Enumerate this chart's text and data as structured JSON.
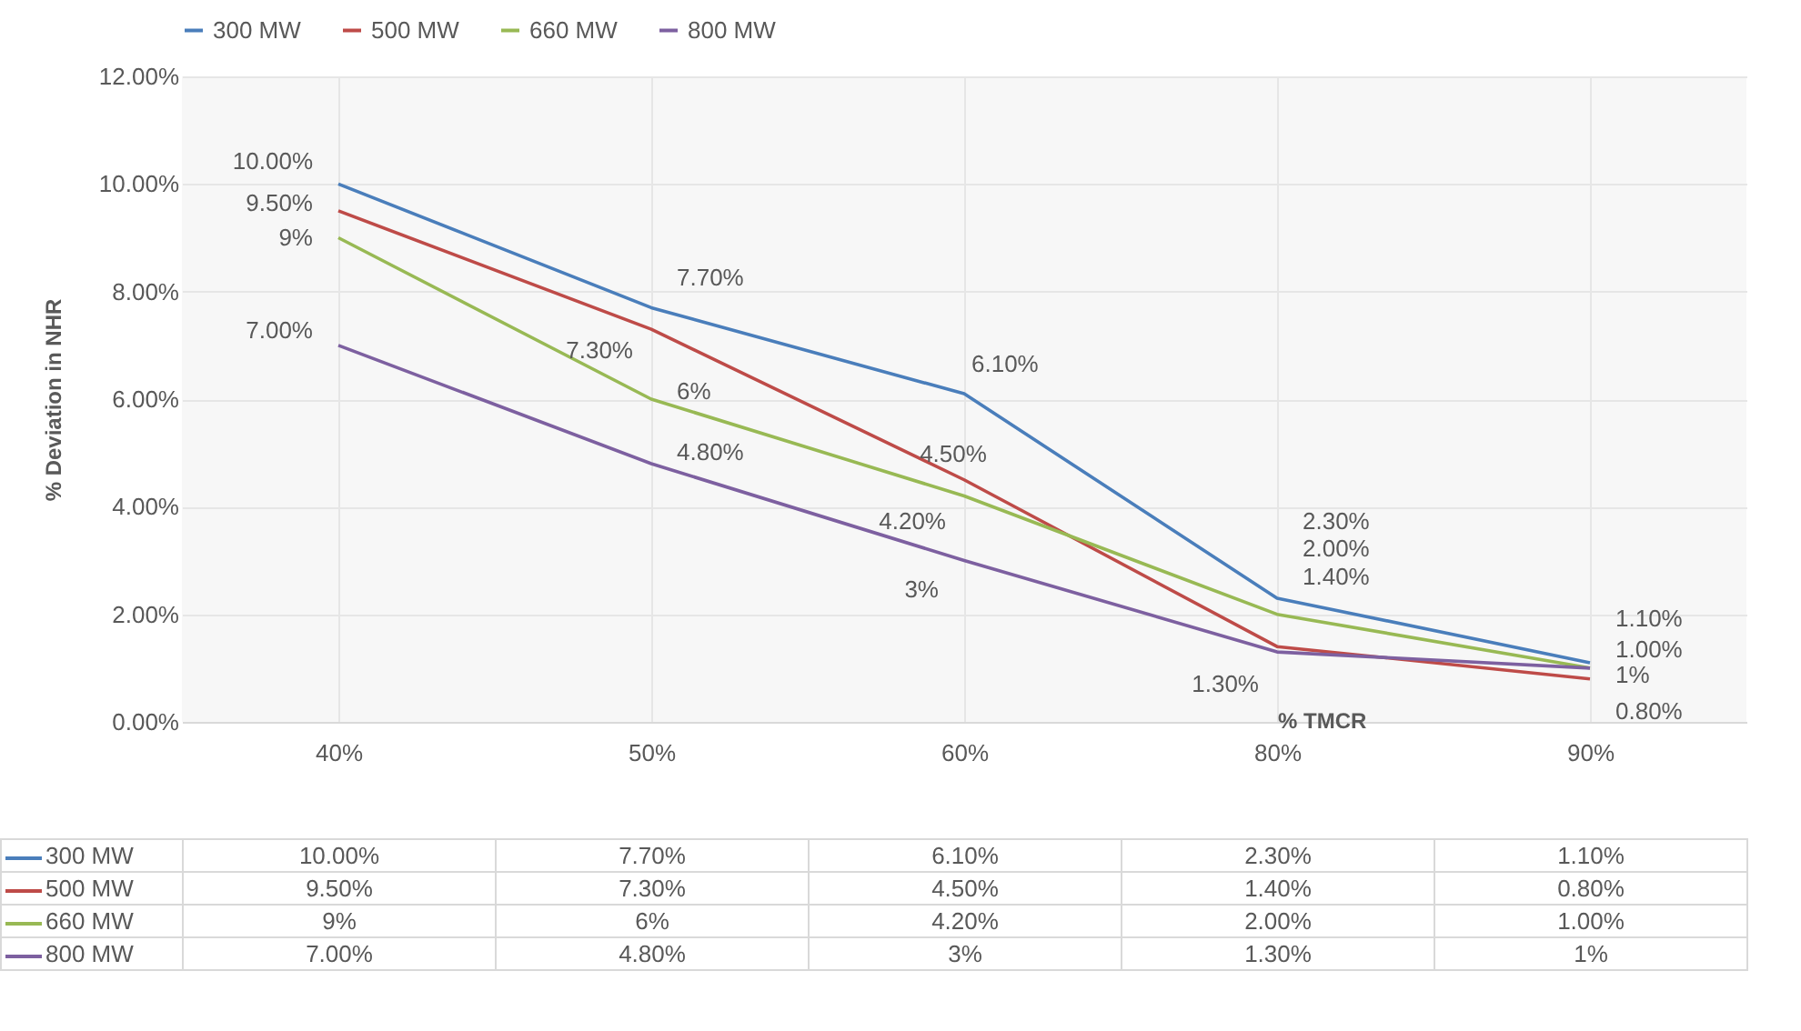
{
  "chart_data": {
    "type": "line",
    "xlabel": "% TMCR",
    "ylabel": "% Deviation in NHR",
    "categories": [
      "40%",
      "50%",
      "60%",
      "80%",
      "90%"
    ],
    "series": [
      {
        "name": "300 MW",
        "color": "#4a7ebb",
        "values": [
          10,
          7.7,
          6.1,
          2.3,
          1.1
        ],
        "value_labels": [
          "10.00%",
          "7.70%",
          "6.10%",
          "2.30%",
          "1.10%"
        ]
      },
      {
        "name": "500 MW",
        "color": "#be4b48",
        "values": [
          9.5,
          7.3,
          4.5,
          1.4,
          0.8
        ],
        "value_labels": [
          "9.50%",
          "7.30%",
          "4.50%",
          "1.40%",
          "0.80%"
        ]
      },
      {
        "name": "660 MW",
        "color": "#98b954",
        "values": [
          9,
          6,
          4.2,
          2,
          1
        ],
        "value_labels": [
          "9%",
          "6%",
          "4.20%",
          "2.00%",
          "1.00%"
        ]
      },
      {
        "name": "800 MW",
        "color": "#7d60a0",
        "values": [
          7,
          4.8,
          3,
          1.3,
          1
        ],
        "value_labels": [
          "7.00%",
          "4.80%",
          "3%",
          "1.30%",
          "1%"
        ]
      }
    ],
    "ylim": [
      0,
      12
    ],
    "yticks": [
      {
        "value": 0,
        "label": "0.00%"
      },
      {
        "value": 2,
        "label": "2.00%"
      },
      {
        "value": 4,
        "label": "4.00%"
      },
      {
        "value": 6,
        "label": "6.00%"
      },
      {
        "value": 8,
        "label": "8.00%"
      },
      {
        "value": 10,
        "label": "10.00%"
      },
      {
        "value": 12,
        "label": "12.00%"
      }
    ],
    "grid": true,
    "legend": "top",
    "line_style": "solid"
  }
}
